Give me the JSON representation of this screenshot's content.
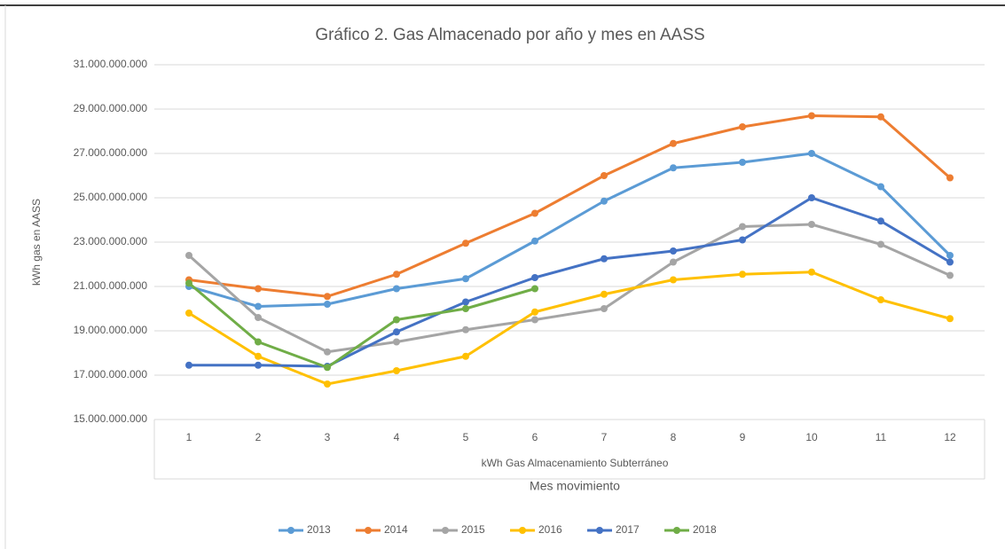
{
  "chart_data": {
    "type": "line",
    "title": "Gráfico 2. Gas Almacenado por año y mes en AASS",
    "y_label": "kWh gas en AASS",
    "x_group_label": "kWh Gas Almacenamiento Subterráneo",
    "x_label": "Mes movimiento",
    "categories": [
      "1",
      "2",
      "3",
      "4",
      "5",
      "6",
      "7",
      "8",
      "9",
      "10",
      "11",
      "12"
    ],
    "ylim": [
      15000000000,
      31000000000
    ],
    "yticks": [
      {
        "value": 15000000000,
        "label": "15.000.000.000"
      },
      {
        "value": 17000000000,
        "label": "17.000.000.000"
      },
      {
        "value": 19000000000,
        "label": "19.000.000.000"
      },
      {
        "value": 21000000000,
        "label": "21.000.000.000"
      },
      {
        "value": 23000000000,
        "label": "23.000.000.000"
      },
      {
        "value": 25000000000,
        "label": "25.000.000.000"
      },
      {
        "value": 27000000000,
        "label": "27.000.000.000"
      },
      {
        "value": 29000000000,
        "label": "29.000.000.000"
      },
      {
        "value": 31000000000,
        "label": "31.000.000.000"
      }
    ],
    "grid": true,
    "legend": "bottom",
    "series": [
      {
        "name": "2013",
        "color": "#5b9bd5",
        "values": [
          21000000000,
          20100000000,
          20200000000,
          20900000000,
          21350000000,
          23050000000,
          24850000000,
          26350000000,
          26600000000,
          27000000000,
          25500000000,
          22400000000
        ]
      },
      {
        "name": "2014",
        "color": "#ed7d31",
        "values": [
          21300000000,
          20900000000,
          20550000000,
          21550000000,
          22950000000,
          24300000000,
          26000000000,
          27450000000,
          28200000000,
          28700000000,
          28650000000,
          25900000000
        ]
      },
      {
        "name": "2015",
        "color": "#a5a5a5",
        "values": [
          22400000000,
          19600000000,
          18050000000,
          18500000000,
          19050000000,
          19500000000,
          20000000000,
          22100000000,
          23700000000,
          23800000000,
          22900000000,
          21500000000
        ]
      },
      {
        "name": "2016",
        "color": "#ffc000",
        "values": [
          19800000000,
          17850000000,
          16600000000,
          17200000000,
          17850000000,
          19850000000,
          20650000000,
          21300000000,
          21550000000,
          21650000000,
          20400000000,
          19550000000
        ]
      },
      {
        "name": "2017",
        "color": "#4472c4",
        "values": [
          17450000000,
          17450000000,
          17400000000,
          18950000000,
          20300000000,
          21400000000,
          22250000000,
          22600000000,
          23100000000,
          25000000000,
          23950000000,
          22100000000
        ]
      },
      {
        "name": "2018",
        "color": "#70ad47",
        "values": [
          21150000000,
          18500000000,
          17350000000,
          19500000000,
          20000000000,
          20900000000,
          null,
          null,
          null,
          null,
          null,
          null
        ]
      }
    ]
  }
}
